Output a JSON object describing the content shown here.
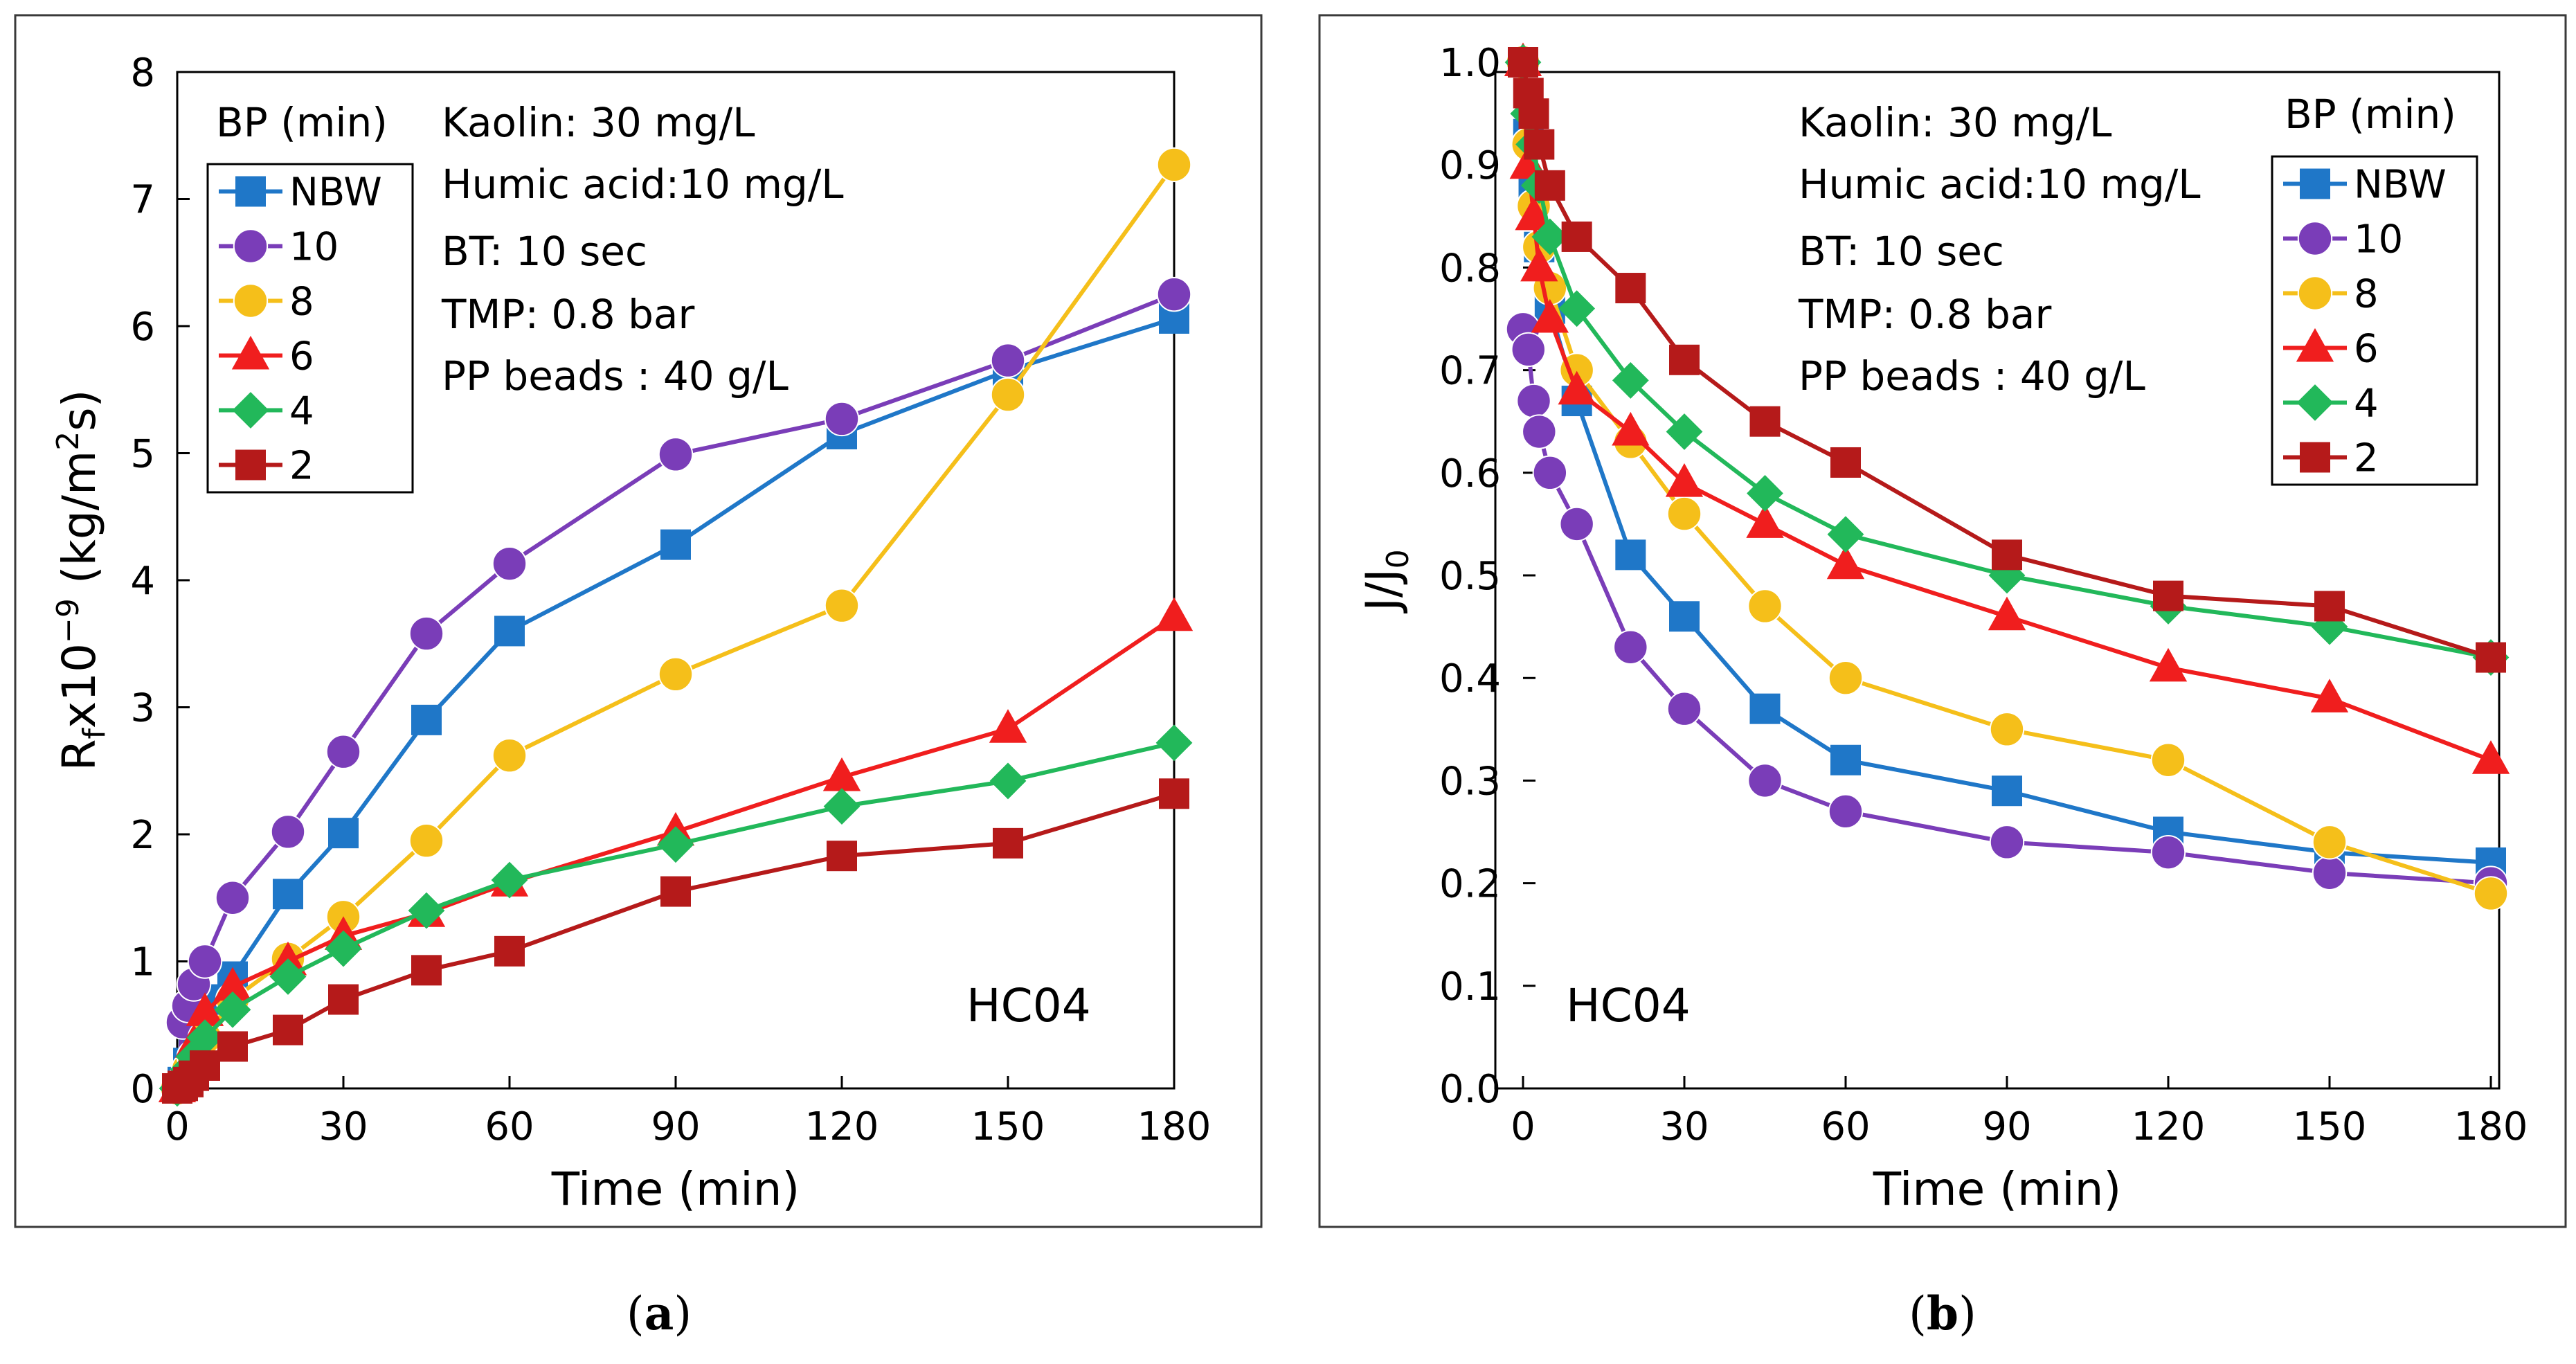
{
  "colors": {
    "NBW": "#1f77c8",
    "10": "#7a3db8",
    "8": "#f5bf1a",
    "6": "#f01e1e",
    "4": "#22b85a",
    "2": "#b51a1a"
  },
  "chart_data": [
    {
      "type": "line",
      "panel_caption": "(a)",
      "caption_letter": "a",
      "xlabel": "Time (min)",
      "ylabel": "R",
      "ylabel_sub": "f",
      "ylabel_rest": "x10",
      "ylabel_exp": "−9",
      "ylabel_unit": " (kg/m",
      "ylabel_unit_exp": "2",
      "ylabel_unit_end": "s)",
      "xlim": [
        0,
        180
      ],
      "ylim": [
        0,
        8
      ],
      "xticks": [
        "0",
        "30",
        "60",
        "90",
        "120",
        "150",
        "180"
      ],
      "yticks": [
        "0",
        "1",
        "2",
        "3",
        "4",
        "5",
        "6",
        "7",
        "8"
      ],
      "x": [
        0,
        1,
        2,
        3,
        5,
        10,
        20,
        30,
        45,
        60,
        90,
        120,
        150,
        180
      ],
      "legend_title": "BP (min)",
      "conditions": [
        "Kaolin: 30 mg/L",
        "Humic acid:10 mg/L",
        "BT: 10 sec",
        "TMP: 0.8 bar",
        "PP beads : 40 g/L"
      ],
      "annotation": "HC04",
      "series": [
        {
          "name": "NBW",
          "marker": "square",
          "values": [
            0,
            0.05,
            0.2,
            0.45,
            0.7,
            0.88,
            1.53,
            2.01,
            2.9,
            3.6,
            4.28,
            5.15,
            5.65,
            6.06
          ]
        },
        {
          "name": "10",
          "marker": "circle",
          "values": [
            0,
            0.52,
            0.65,
            0.82,
            1.0,
            1.5,
            2.02,
            2.65,
            3.58,
            4.13,
            4.99,
            5.27,
            5.73,
            6.25
          ]
        },
        {
          "name": "8",
          "marker": "circle",
          "values": [
            0,
            0.05,
            0.15,
            0.25,
            0.4,
            0.7,
            1.02,
            1.35,
            1.95,
            2.62,
            3.26,
            3.8,
            5.46,
            7.27
          ]
        },
        {
          "name": "6",
          "marker": "triangle",
          "values": [
            0,
            0.05,
            0.2,
            0.35,
            0.6,
            0.8,
            1.0,
            1.2,
            1.38,
            1.62,
            2.02,
            2.45,
            2.83,
            3.71
          ]
        },
        {
          "name": "4",
          "marker": "diamond",
          "values": [
            0,
            0.05,
            0.15,
            0.25,
            0.4,
            0.62,
            0.88,
            1.1,
            1.4,
            1.64,
            1.92,
            2.22,
            2.42,
            2.72
          ]
        },
        {
          "name": "2",
          "marker": "square",
          "values": [
            0,
            0.02,
            0.05,
            0.1,
            0.18,
            0.33,
            0.46,
            0.7,
            0.93,
            1.08,
            1.55,
            1.83,
            1.93,
            2.32
          ]
        }
      ]
    },
    {
      "type": "line",
      "panel_caption": "(b)",
      "caption_letter": "b",
      "xlabel": "Time (min)",
      "ylabel": "J/J",
      "ylabel_sub": "0",
      "xlim": [
        0,
        180
      ],
      "ylim": [
        0,
        1.0
      ],
      "xticks": [
        "0",
        "30",
        "60",
        "90",
        "120",
        "150",
        "180"
      ],
      "yticks": [
        "0.0",
        "0.1",
        "0.2",
        "0.3",
        "0.4",
        "0.5",
        "0.6",
        "0.7",
        "0.8",
        "0.9",
        "1.0"
      ],
      "x": [
        0,
        1,
        2,
        3,
        5,
        10,
        20,
        30,
        45,
        60,
        90,
        120,
        150,
        180
      ],
      "legend_title": "BP (min)",
      "conditions": [
        "Kaolin: 30 mg/L",
        "Humic acid:10 mg/L",
        "BT: 10 sec",
        "TMP: 0.8 bar",
        "PP beads : 40 g/L"
      ],
      "annotation": "HC04",
      "series": [
        {
          "name": "NBW",
          "marker": "square",
          "values": [
            1.0,
            0.93,
            0.88,
            0.82,
            0.76,
            0.67,
            0.52,
            0.46,
            0.37,
            0.32,
            0.29,
            0.25,
            0.23,
            0.22
          ]
        },
        {
          "name": "10",
          "marker": "circle",
          "values": [
            0.74,
            0.72,
            0.67,
            0.64,
            0.6,
            0.55,
            0.43,
            0.37,
            0.3,
            0.27,
            0.24,
            0.23,
            0.21,
            0.2
          ]
        },
        {
          "name": "8",
          "marker": "circle",
          "values": [
            1.0,
            0.92,
            0.86,
            0.82,
            0.78,
            0.7,
            0.63,
            0.56,
            0.47,
            0.4,
            0.35,
            0.32,
            0.24,
            0.19
          ]
        },
        {
          "name": "6",
          "marker": "triangle",
          "values": [
            1.0,
            0.9,
            0.85,
            0.8,
            0.75,
            0.68,
            0.64,
            0.59,
            0.55,
            0.51,
            0.46,
            0.41,
            0.38,
            0.32
          ]
        },
        {
          "name": "4",
          "marker": "diamond",
          "values": [
            1.0,
            0.95,
            0.92,
            0.88,
            0.83,
            0.76,
            0.69,
            0.64,
            0.58,
            0.54,
            0.5,
            0.47,
            0.45,
            0.42
          ]
        },
        {
          "name": "2",
          "marker": "square",
          "values": [
            1.0,
            0.97,
            0.95,
            0.92,
            0.88,
            0.83,
            0.78,
            0.71,
            0.65,
            0.61,
            0.52,
            0.48,
            0.47,
            0.42
          ]
        }
      ]
    }
  ]
}
